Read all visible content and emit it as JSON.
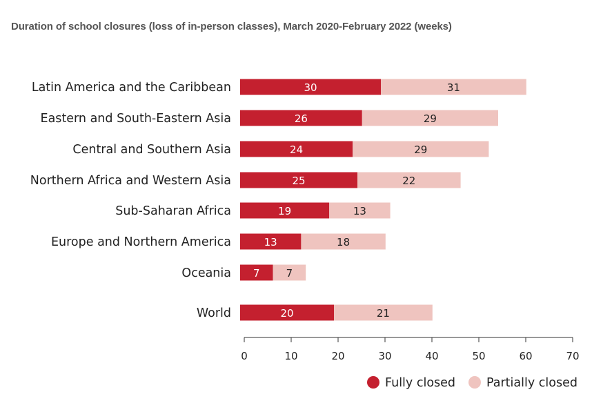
{
  "chart_data": {
    "type": "bar",
    "orientation": "horizontal",
    "stacked": true,
    "title": "Duration of school closures (loss of in-person classes), March 2020-February 2022 (weeks)",
    "categories": [
      "Latin America and the Caribbean",
      "Eastern and South-Eastern Asia",
      "Central and Southern Asia",
      "Northern Africa and Western Asia",
      "Sub-Saharan Africa",
      "Europe and Northern America",
      "Oceania",
      "World"
    ],
    "series": [
      {
        "name": "Fully closed",
        "color": "#c4202f",
        "label_color": "#ffffff",
        "values": [
          30,
          26,
          24,
          25,
          19,
          13,
          7,
          20
        ]
      },
      {
        "name": "Partially closed",
        "color": "#efc4bf",
        "label_color": "#222222",
        "values": [
          31,
          29,
          29,
          22,
          13,
          18,
          7,
          21
        ]
      }
    ],
    "xlim": [
      0,
      70
    ],
    "xticks": [
      0,
      10,
      20,
      30,
      40,
      50,
      60,
      70
    ],
    "grid": false,
    "legend_position": "bottom-right"
  }
}
